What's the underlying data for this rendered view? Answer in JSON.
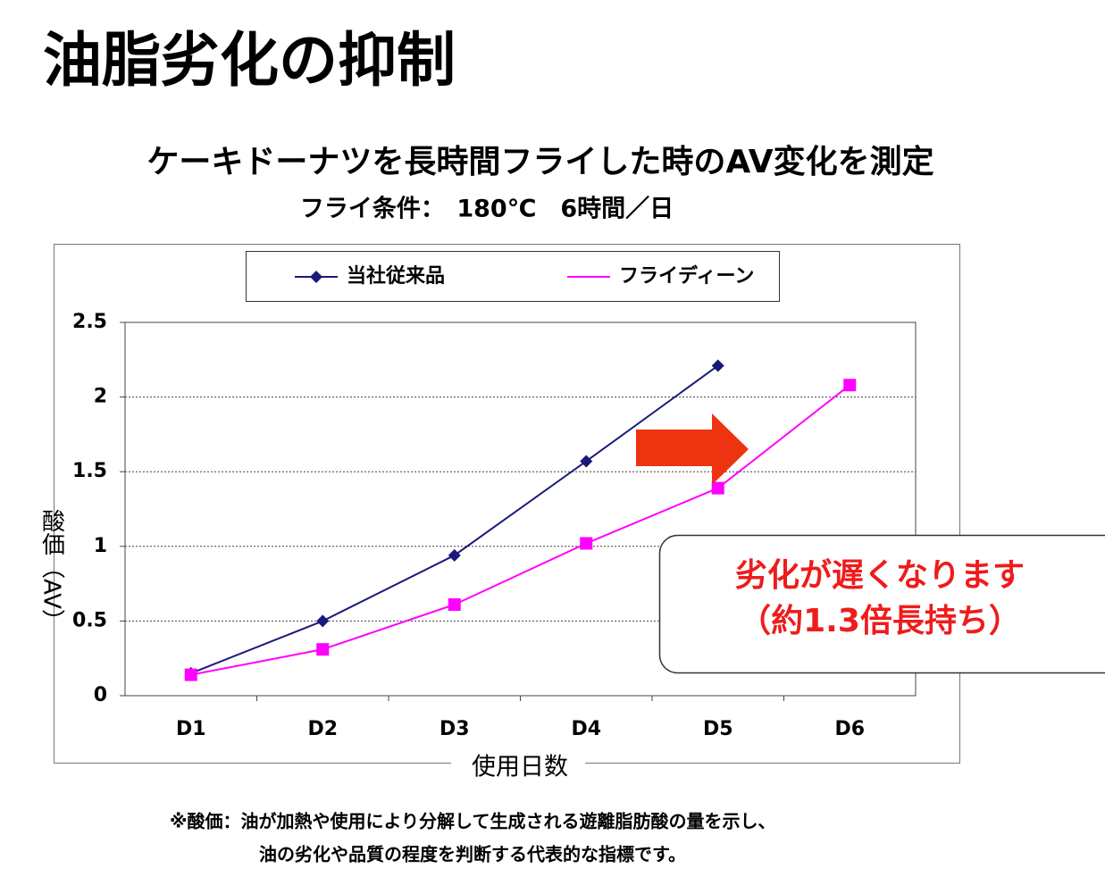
{
  "header": {
    "title": "油脂劣化の抑制"
  },
  "chart_data": {
    "type": "line",
    "title": "ケーキドーナツを長時間フライした時のAV変化を測定",
    "subtitle": "フライ条件：　180℃　6時間／日",
    "x_label": "使用日数",
    "y_label": "酸価（AV）",
    "categories": [
      "D1",
      "D2",
      "D3",
      "D4",
      "D5",
      "D6"
    ],
    "series": [
      {
        "name": "当社従来品",
        "color": "#1a1a7a",
        "marker": "diamond",
        "values": [
          0.15,
          0.5,
          0.94,
          1.57,
          2.21,
          null
        ]
      },
      {
        "name": "フライディーン",
        "color": "#ff00ff",
        "marker": "square",
        "values": [
          0.14,
          0.31,
          0.61,
          1.02,
          1.39,
          2.08
        ]
      }
    ],
    "ylim": [
      0,
      2.5
    ],
    "yticks": [
      0,
      0.5,
      1,
      1.5,
      2,
      2.5
    ],
    "grid": true,
    "annotation": [
      "劣化が遅くなります",
      "（約1.3倍長持ち）"
    ]
  },
  "footnote": [
    "※酸価：油が加熱や使用により分解して生成される遊離脂肪酸の量を示し、",
    "油の劣化や品質の程度を判断する代表的な指標です。"
  ]
}
